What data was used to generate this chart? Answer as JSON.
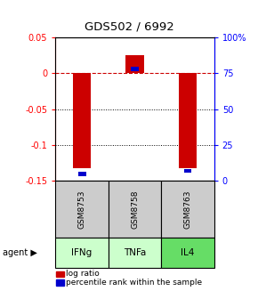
{
  "title": "GDS502 / 6992",
  "samples": [
    "GSM8753",
    "GSM8758",
    "GSM8763"
  ],
  "agents": [
    "IFNg",
    "TNFa",
    "IL4"
  ],
  "log_ratios": [
    -0.132,
    0.025,
    -0.132
  ],
  "percentile_ranks": [
    5,
    78,
    7
  ],
  "ylim_left": [
    -0.15,
    0.05
  ],
  "ylim_right": [
    0,
    100
  ],
  "left_ticks": [
    0.05,
    0,
    -0.05,
    -0.1,
    -0.15
  ],
  "right_ticks": [
    100,
    75,
    50,
    25,
    0
  ],
  "bar_color": "#cc0000",
  "pct_color": "#0000cc",
  "agent_colors": [
    "#ccffcc",
    "#ccffcc",
    "#66dd66"
  ],
  "sample_bg": "#cccccc",
  "zero_line_color": "#cc0000"
}
